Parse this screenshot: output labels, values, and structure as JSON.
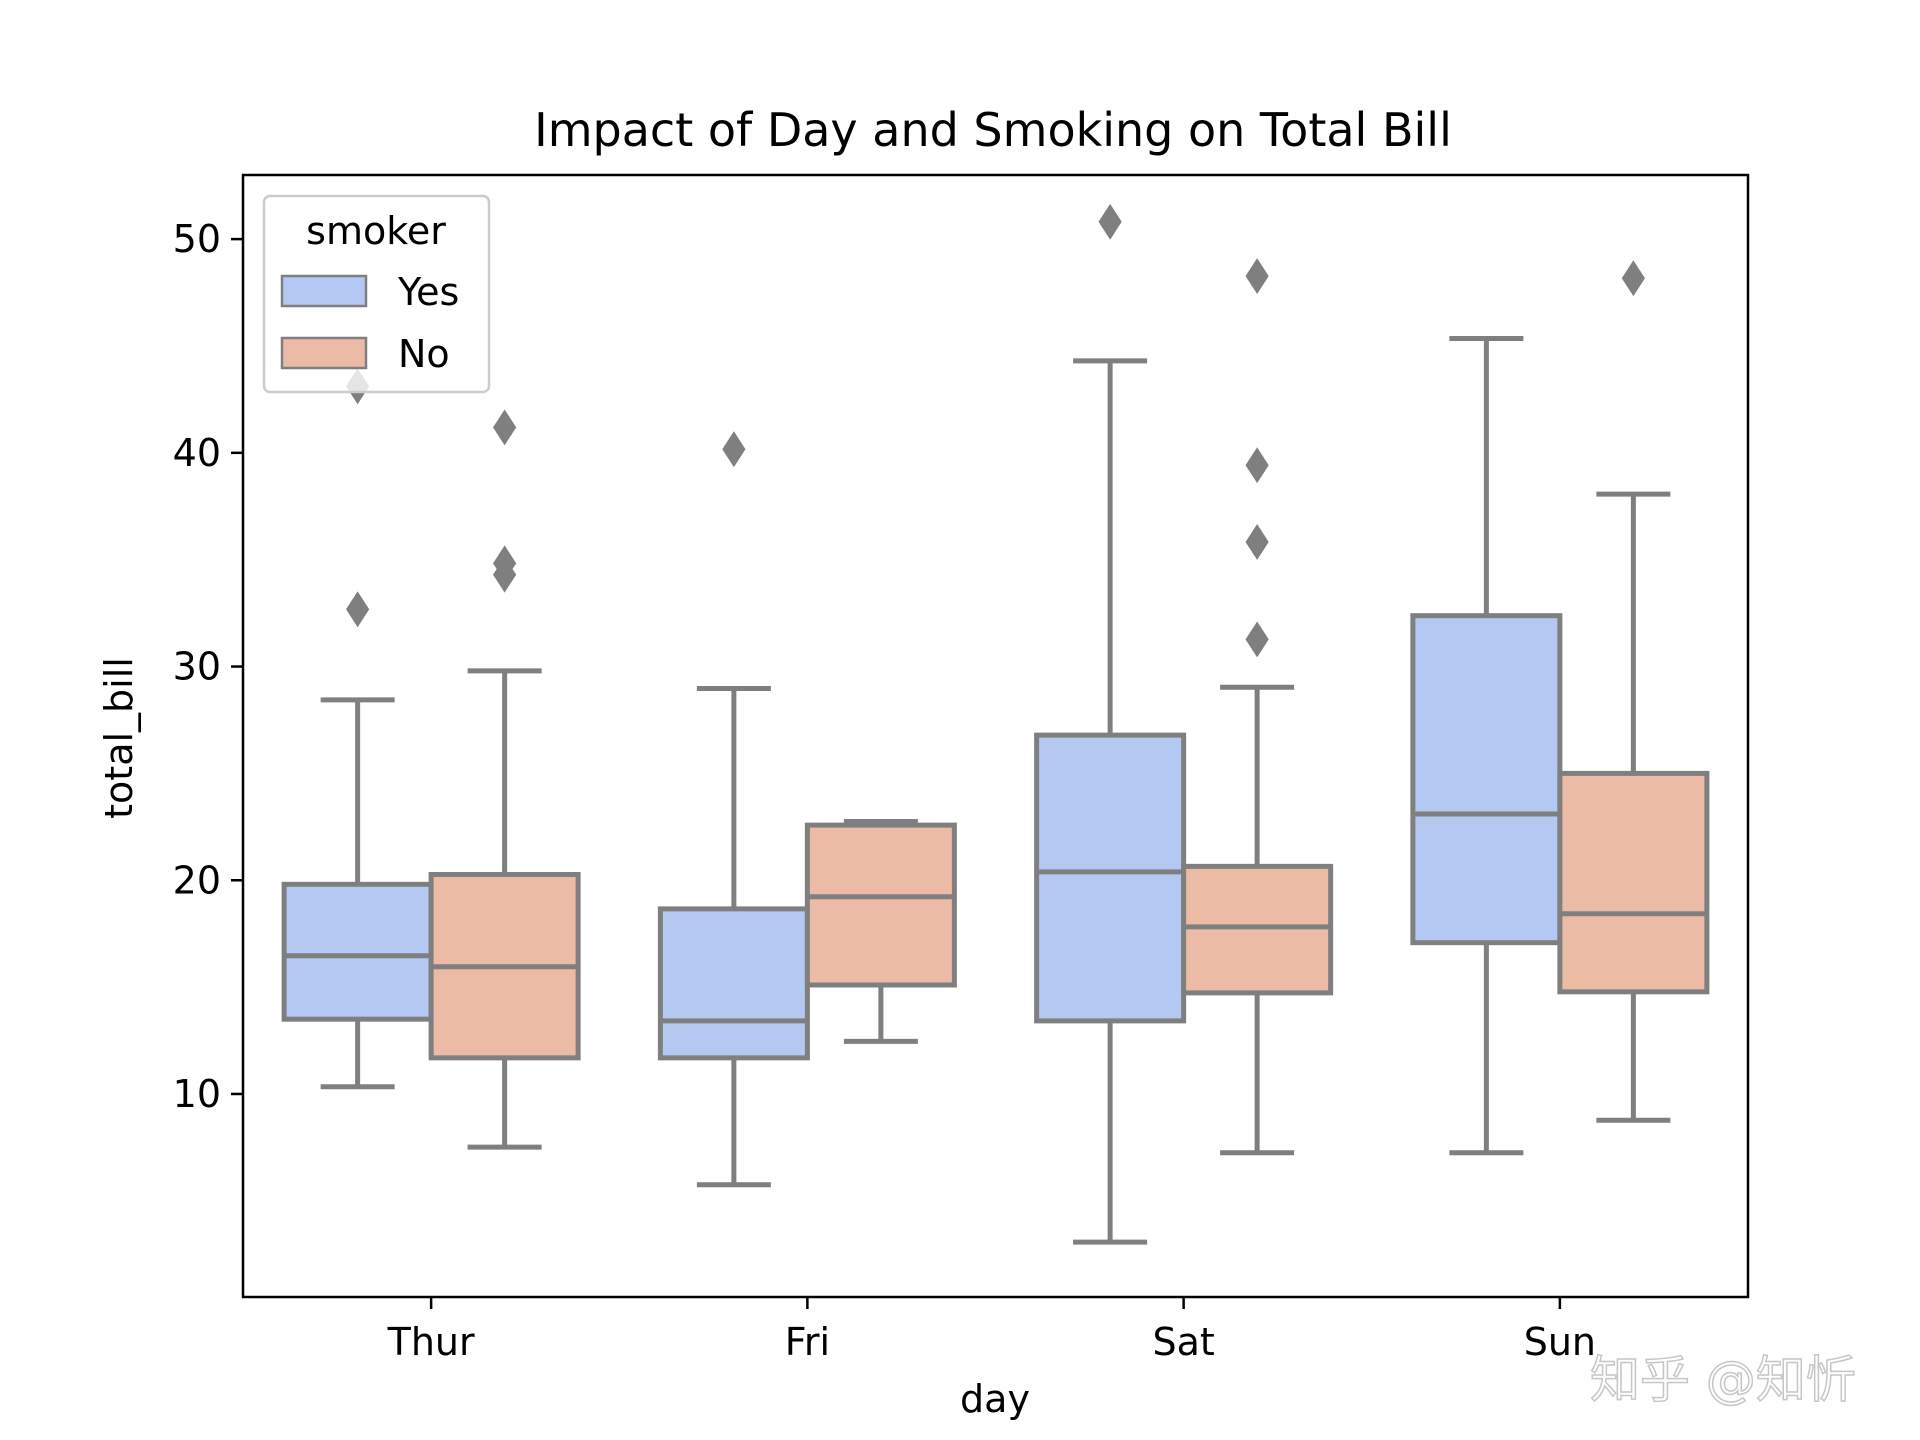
{
  "chart_data": {
    "type": "box",
    "title": "Impact of Day and Smoking on Total Bill",
    "xlabel": "day",
    "ylabel": "total_bill",
    "ylim": [
      0.5,
      53
    ],
    "yticks": [
      10,
      20,
      30,
      40,
      50
    ],
    "categories": [
      "Thur",
      "Fri",
      "Sat",
      "Sun"
    ],
    "legend": {
      "title": "smoker",
      "position": "top-left"
    },
    "series": [
      {
        "name": "Yes",
        "color": "#b4c9f1",
        "boxes": [
          {
            "whislo": 10.34,
            "q1": 13.5,
            "med": 16.47,
            "q3": 19.81,
            "whishi": 28.44,
            "fliers": [
              32.68,
              43.11
            ]
          },
          {
            "whislo": 5.75,
            "q1": 11.69,
            "med": 13.42,
            "q3": 18.66,
            "whishi": 28.97,
            "fliers": [
              40.17
            ]
          },
          {
            "whislo": 3.07,
            "q1": 13.42,
            "med": 20.39,
            "q3": 26.79,
            "whishi": 44.3,
            "fliers": [
              50.81
            ]
          },
          {
            "whislo": 7.25,
            "q1": 17.08,
            "med": 23.1,
            "q3": 32.38,
            "whishi": 45.35,
            "fliers": []
          }
        ]
      },
      {
        "name": "No",
        "color": "#ecbba5",
        "boxes": [
          {
            "whislo": 7.51,
            "q1": 11.69,
            "med": 15.95,
            "q3": 20.27,
            "whishi": 29.8,
            "fliers": [
              34.3,
              34.83,
              41.19
            ]
          },
          {
            "whislo": 12.46,
            "q1": 15.1,
            "med": 19.23,
            "q3": 22.58,
            "whishi": 22.75,
            "fliers": []
          },
          {
            "whislo": 7.25,
            "q1": 14.73,
            "med": 17.82,
            "q3": 20.65,
            "whishi": 29.03,
            "fliers": [
              31.27,
              35.83,
              39.42,
              48.27
            ]
          },
          {
            "whislo": 8.77,
            "q1": 14.78,
            "med": 18.43,
            "q3": 25.0,
            "whishi": 38.07,
            "fliers": [
              48.17
            ]
          }
        ]
      }
    ]
  },
  "colors": {
    "line": "#7f7f7f",
    "yes_fill": "#b4c9f1",
    "no_fill": "#ecbba5"
  },
  "watermark": "知乎 @知忻"
}
